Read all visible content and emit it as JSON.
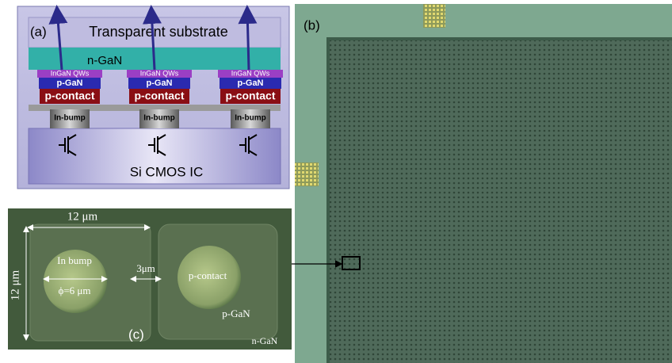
{
  "panel_a": {
    "label": "(a)",
    "substrate": "Transparent substrate",
    "n_gan": "n-GaN",
    "cmos": "Si CMOS IC",
    "pixels": [
      {
        "qws": "InGaN QWs",
        "p_gan": "p-GaN",
        "p_contact": "p-contact",
        "bump": "In-bump"
      },
      {
        "qws": "InGaN QWs",
        "p_gan": "p-GaN",
        "p_contact": "p-contact",
        "bump": "In-bump"
      },
      {
        "qws": "InGaN QWs",
        "p_gan": "p-GaN",
        "p_contact": "p-contact",
        "bump": "In-bump"
      }
    ]
  },
  "panel_b": {
    "label": "(b)"
  },
  "panel_c": {
    "label": "(c)",
    "width_label": "12 μm",
    "height_label": "12 μm",
    "bump_label": "In bump",
    "diameter_label": "ϕ=6 μm",
    "gap_label": "3μm",
    "contact_label": "p-contact",
    "p_gan_label": "p-GaN",
    "n_gan_label": "n-GaN"
  }
}
